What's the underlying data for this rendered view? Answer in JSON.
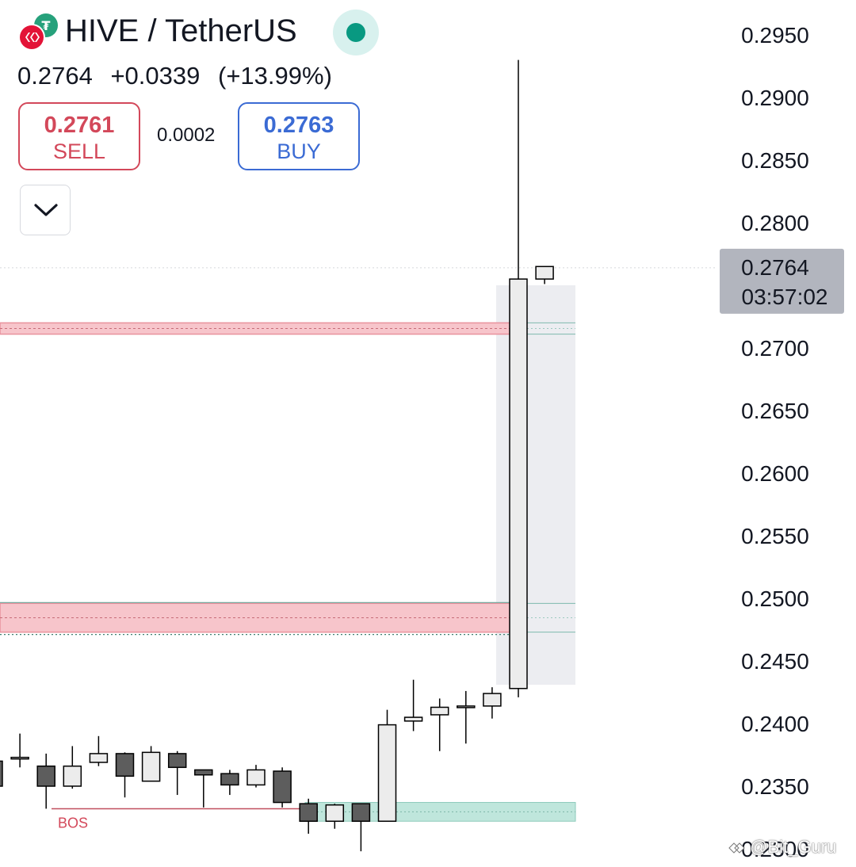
{
  "header": {
    "pair": "HIVE / TetherUS",
    "last_price": "0.2764",
    "change": "+0.0339",
    "change_pct": "(+13.99%)",
    "sell_price": "0.2761",
    "sell_label": "SELL",
    "spread": "0.0002",
    "buy_price": "0.2763",
    "buy_label": "BUY"
  },
  "icons": {
    "logo": "hive-tether-logo-icon",
    "status": "market-open-dot-icon",
    "collapse": "chevron-down-icon"
  },
  "colors": {
    "up_candle": "#ececec",
    "down_candle": "#5d5d5d",
    "sell": "#d3485a",
    "buy": "#3b6bd4",
    "status": "#089981",
    "supply_zone": "#f7c5cb",
    "demand_zone": "#bfe6dc"
  },
  "watermark": "@Bit_Guru",
  "chart_data": {
    "type": "candlestick",
    "y_axis_ticks": [
      "0.2950",
      "0.2900",
      "0.2850",
      "0.2800",
      "0.2700",
      "0.2650",
      "0.2600",
      "0.2550",
      "0.2500",
      "0.2450",
      "0.2400",
      "0.2350",
      "0.2300"
    ],
    "ylim": [
      0.2298,
      0.2962
    ],
    "current_price": {
      "value": "0.2764",
      "countdown": "03:57:02"
    },
    "annotations": [
      {
        "type": "label",
        "text": "BOS",
        "price": 0.2332
      },
      {
        "type": "zone",
        "kind": "supply",
        "top": 0.272,
        "bottom": 0.2711
      },
      {
        "type": "zone",
        "kind": "supply",
        "top": 0.2496,
        "bottom": 0.2473
      },
      {
        "type": "zone",
        "kind": "demand",
        "top": 0.2337,
        "bottom": 0.2322
      },
      {
        "type": "box",
        "top": 0.275,
        "bottom": 0.2431
      }
    ],
    "candles": [
      {
        "o": 0.237,
        "h": 0.237,
        "l": 0.235,
        "c": 0.235
      },
      {
        "o": 0.2373,
        "h": 0.2392,
        "l": 0.2365,
        "c": 0.2373
      },
      {
        "o": 0.2366,
        "h": 0.2376,
        "l": 0.2332,
        "c": 0.235
      },
      {
        "o": 0.235,
        "h": 0.2382,
        "l": 0.2348,
        "c": 0.2366
      },
      {
        "o": 0.2369,
        "h": 0.239,
        "l": 0.2366,
        "c": 0.2376
      },
      {
        "o": 0.2376,
        "h": 0.2377,
        "l": 0.2341,
        "c": 0.2358
      },
      {
        "o": 0.2354,
        "h": 0.2382,
        "l": 0.2354,
        "c": 0.2377
      },
      {
        "o": 0.2376,
        "h": 0.2378,
        "l": 0.2343,
        "c": 0.2365
      },
      {
        "o": 0.2363,
        "h": 0.2363,
        "l": 0.2333,
        "c": 0.2359
      },
      {
        "o": 0.236,
        "h": 0.2363,
        "l": 0.2343,
        "c": 0.2351
      },
      {
        "o": 0.2351,
        "h": 0.2367,
        "l": 0.2349,
        "c": 0.2363
      },
      {
        "o": 0.2362,
        "h": 0.2365,
        "l": 0.2333,
        "c": 0.2337
      },
      {
        "o": 0.2336,
        "h": 0.234,
        "l": 0.2312,
        "c": 0.2322
      },
      {
        "o": 0.2322,
        "h": 0.2336,
        "l": 0.2316,
        "c": 0.2335
      },
      {
        "o": 0.2336,
        "h": 0.2336,
        "l": 0.2298,
        "c": 0.2322
      },
      {
        "o": 0.2322,
        "h": 0.2411,
        "l": 0.2322,
        "c": 0.2399
      },
      {
        "o": 0.2402,
        "h": 0.2435,
        "l": 0.2394,
        "c": 0.2405
      },
      {
        "o": 0.2407,
        "h": 0.242,
        "l": 0.2378,
        "c": 0.2413
      },
      {
        "o": 0.2414,
        "h": 0.2426,
        "l": 0.2384,
        "c": 0.2414
      },
      {
        "o": 0.2414,
        "h": 0.2429,
        "l": 0.2404,
        "c": 0.2424
      },
      {
        "o": 0.2428,
        "h": 0.293,
        "l": 0.2421,
        "c": 0.2755
      },
      {
        "o": 0.2755,
        "h": 0.2765,
        "l": 0.2751,
        "c": 0.2765
      }
    ]
  }
}
